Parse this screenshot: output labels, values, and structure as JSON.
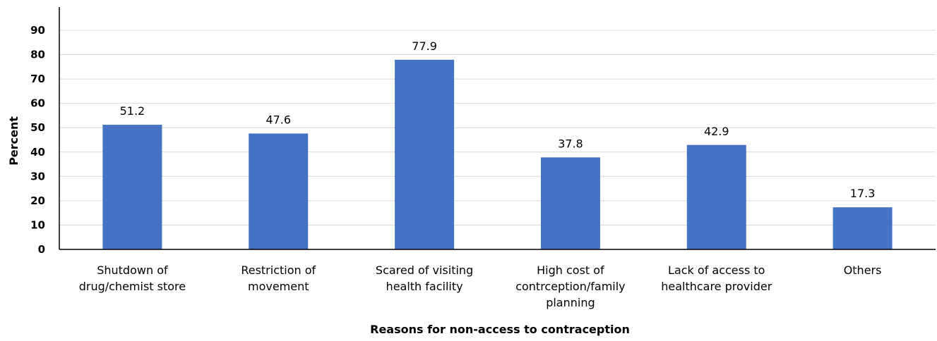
{
  "chart_data": {
    "type": "bar",
    "title": "",
    "xlabel": "Reasons for non-access to contraception",
    "ylabel": "Percent",
    "ylim": [
      0,
      90
    ],
    "yticks": [
      0,
      10,
      20,
      30,
      40,
      50,
      60,
      70,
      80,
      90
    ],
    "grid": true,
    "bar_color": "#4472C4",
    "categories": [
      [
        "Shutdown of",
        "drug/chemist store"
      ],
      [
        "Restriction of",
        "movement"
      ],
      [
        "Scared of visiting",
        "health facility"
      ],
      [
        "High cost of",
        "contrception/family",
        "planning"
      ],
      [
        "Lack of access to",
        "healthcare provider"
      ],
      [
        "Others"
      ]
    ],
    "values": [
      51.2,
      47.6,
      77.9,
      37.8,
      42.9,
      17.3
    ],
    "value_labels": [
      "51.2",
      "47.6",
      "77.9",
      "37.8",
      "42.9",
      "17.3"
    ]
  }
}
